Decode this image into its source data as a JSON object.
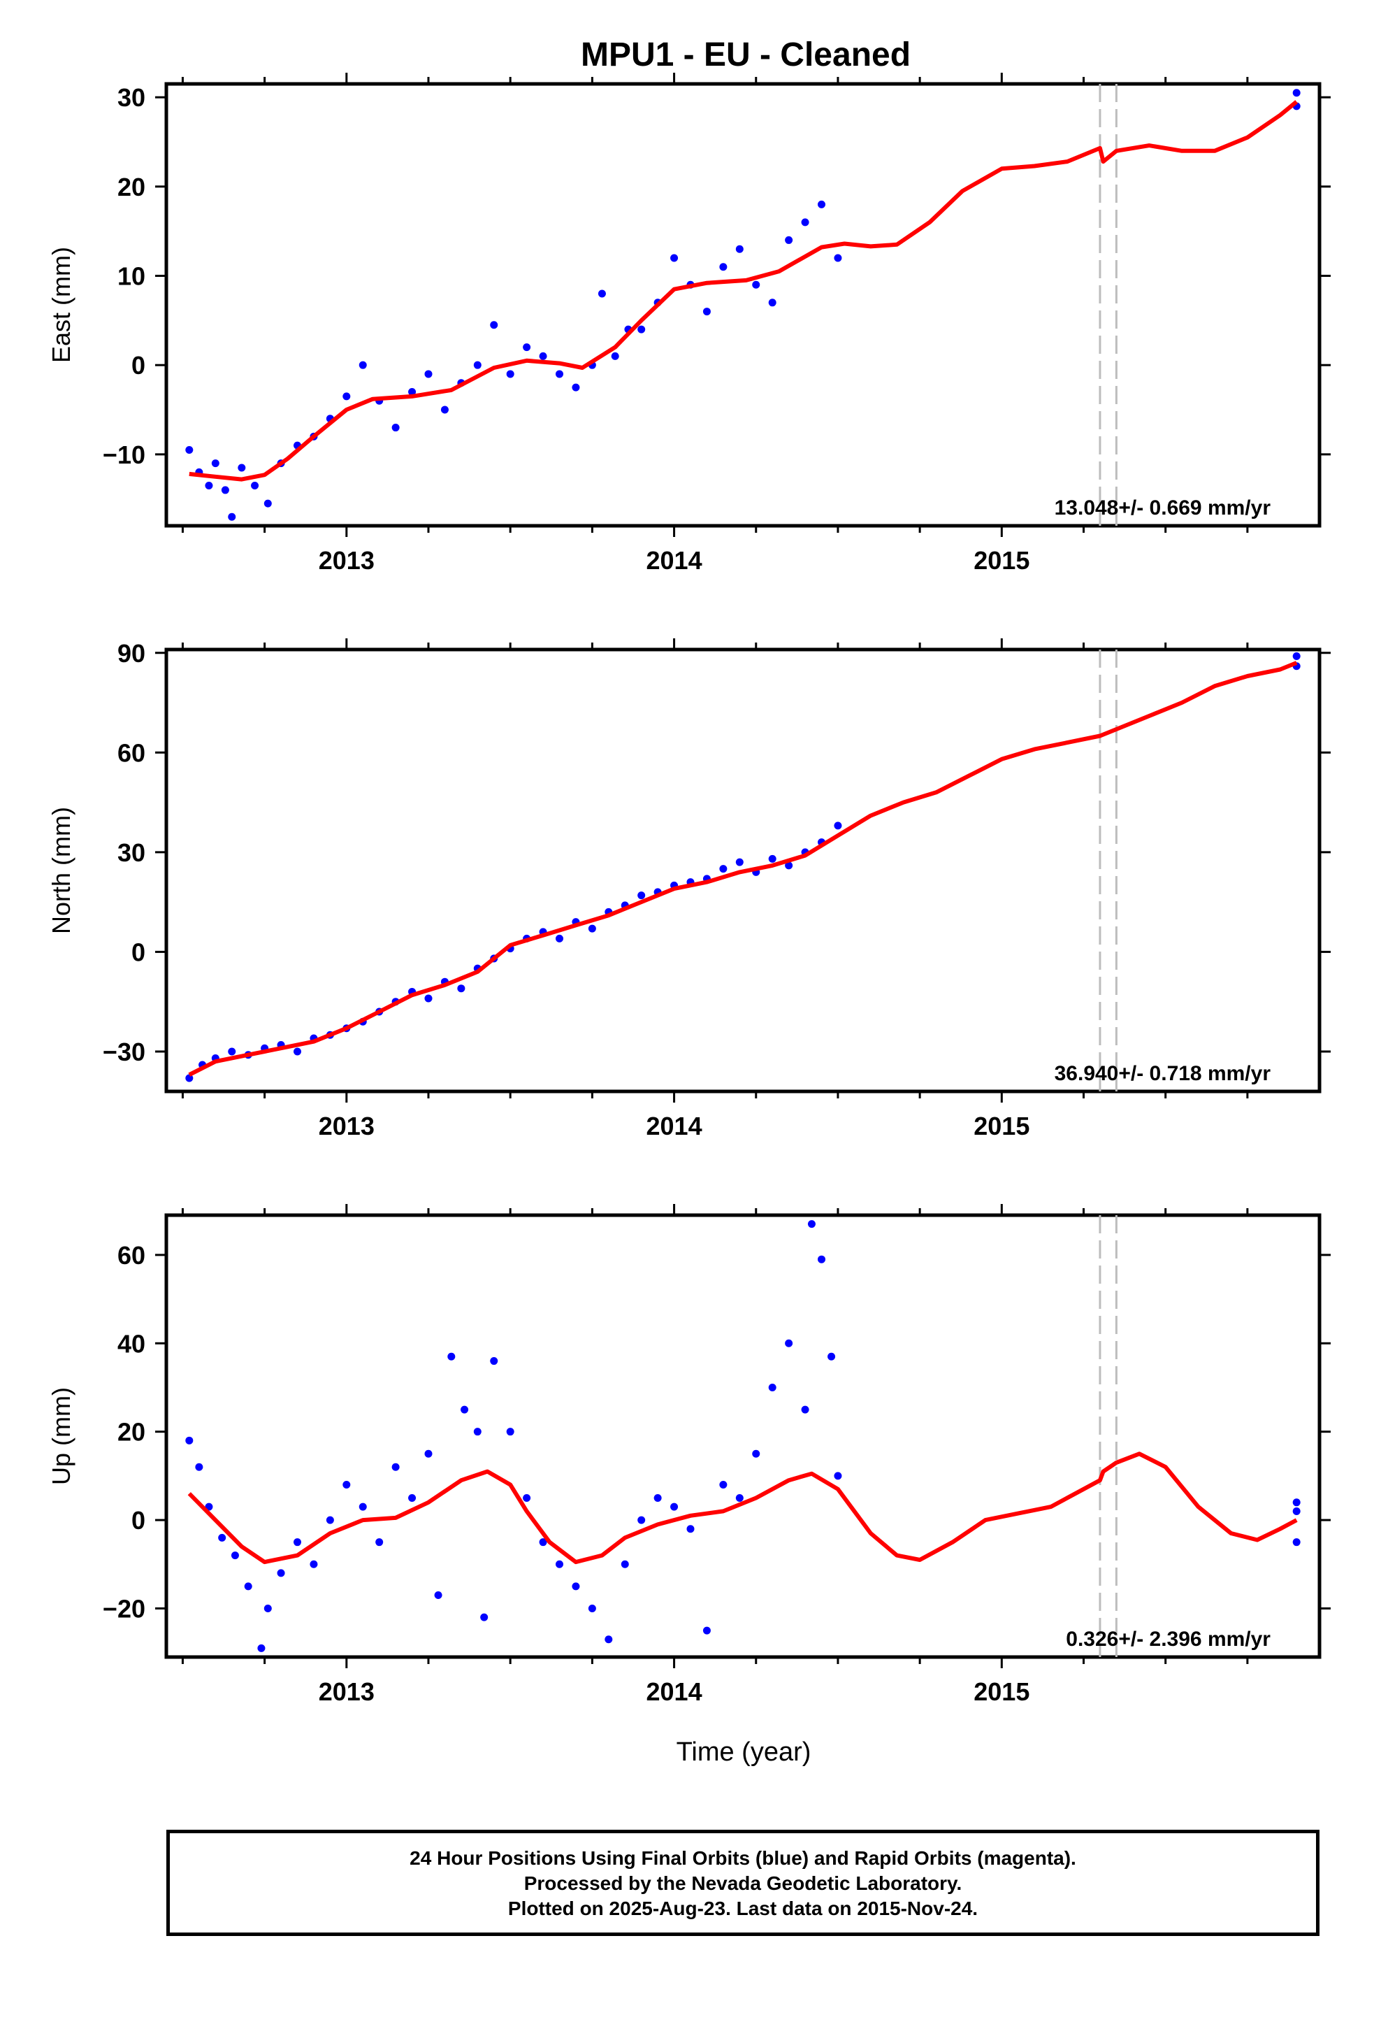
{
  "chart_title": "MPU1  - EU - Cleaned",
  "x_axis_label": "Time (year)",
  "chart_data": [
    {
      "type": "scatter",
      "title": "MPU1  - EU - Cleaned",
      "ylabel": "East (mm)",
      "xlabel": "",
      "xlim": [
        2012.45,
        2015.97
      ],
      "ylim": [
        -18,
        31.5
      ],
      "xticks": [
        2013,
        2014,
        2015
      ],
      "yticks": [
        -10,
        0,
        10,
        20,
        30
      ],
      "grid": false,
      "rate_label": "13.048+/- 0.669 mm/yr",
      "steps": [
        2015.3,
        2015.35
      ],
      "fit": [
        [
          2012.52,
          -12.2
        ],
        [
          2012.6,
          -12.5
        ],
        [
          2012.68,
          -12.8
        ],
        [
          2012.75,
          -12.3
        ],
        [
          2012.82,
          -10.5
        ],
        [
          2012.9,
          -8
        ],
        [
          2013.0,
          -5
        ],
        [
          2013.08,
          -3.8
        ],
        [
          2013.2,
          -3.5
        ],
        [
          2013.32,
          -2.8
        ],
        [
          2013.45,
          -0.3
        ],
        [
          2013.55,
          0.5
        ],
        [
          2013.65,
          0.2
        ],
        [
          2013.72,
          -0.3
        ],
        [
          2013.82,
          2
        ],
        [
          2013.9,
          5
        ],
        [
          2014.0,
          8.5
        ],
        [
          2014.1,
          9.2
        ],
        [
          2014.22,
          9.5
        ],
        [
          2014.32,
          10.5
        ],
        [
          2014.45,
          13.2
        ],
        [
          2014.52,
          13.6
        ],
        [
          2014.6,
          13.3
        ],
        [
          2014.68,
          13.5
        ],
        [
          2014.78,
          16
        ],
        [
          2014.88,
          19.5
        ],
        [
          2015.0,
          22
        ],
        [
          2015.1,
          22.3
        ],
        [
          2015.2,
          22.8
        ],
        [
          2015.3,
          24.3
        ],
        [
          2015.31,
          22.8
        ],
        [
          2015.35,
          24.0
        ],
        [
          2015.45,
          24.6
        ],
        [
          2015.55,
          24
        ],
        [
          2015.65,
          24
        ],
        [
          2015.75,
          25.5
        ],
        [
          2015.85,
          28
        ],
        [
          2015.9,
          29.5
        ]
      ],
      "points": {
        "final": [
          [
            2012.52,
            -9.5
          ],
          [
            2012.55,
            -12
          ],
          [
            2012.58,
            -13.5
          ],
          [
            2012.6,
            -11
          ],
          [
            2012.63,
            -14
          ],
          [
            2012.65,
            -17
          ],
          [
            2012.68,
            -11.5
          ],
          [
            2012.72,
            -13.5
          ],
          [
            2012.76,
            -15.5
          ],
          [
            2012.8,
            -11
          ],
          [
            2012.85,
            -9
          ],
          [
            2012.9,
            -8
          ],
          [
            2012.95,
            -6
          ],
          [
            2013.0,
            -3.5
          ],
          [
            2013.05,
            0
          ],
          [
            2013.1,
            -4
          ],
          [
            2013.15,
            -7
          ],
          [
            2013.2,
            -3
          ],
          [
            2013.25,
            -1
          ],
          [
            2013.3,
            -5
          ],
          [
            2013.35,
            -2
          ],
          [
            2013.4,
            0
          ],
          [
            2013.45,
            4.5
          ],
          [
            2013.5,
            -1
          ],
          [
            2013.55,
            2
          ],
          [
            2013.6,
            1
          ],
          [
            2013.65,
            -1
          ],
          [
            2013.7,
            -2.5
          ],
          [
            2013.75,
            0
          ],
          [
            2013.78,
            8
          ],
          [
            2013.82,
            1
          ],
          [
            2013.86,
            4
          ],
          [
            2013.9,
            4
          ],
          [
            2013.95,
            7
          ],
          [
            2014.0,
            12
          ],
          [
            2014.05,
            9
          ],
          [
            2014.1,
            6
          ],
          [
            2014.15,
            11
          ],
          [
            2014.2,
            13
          ],
          [
            2014.25,
            9
          ],
          [
            2014.3,
            7
          ],
          [
            2014.35,
            14
          ],
          [
            2014.4,
            16
          ],
          [
            2014.45,
            18
          ],
          [
            2014.5,
            12
          ]
        ],
        "rapid": [
          [
            2015.9,
            30.5
          ],
          [
            2015.9,
            29
          ]
        ]
      }
    },
    {
      "type": "scatter",
      "ylabel": "North (mm)",
      "xlabel": "",
      "xlim": [
        2012.45,
        2015.97
      ],
      "ylim": [
        -42,
        91
      ],
      "xticks": [
        2013,
        2014,
        2015
      ],
      "yticks": [
        -30,
        0,
        30,
        60,
        90
      ],
      "grid": false,
      "rate_label": "36.940+/- 0.718 mm/yr",
      "steps": [
        2015.3,
        2015.35
      ],
      "fit": [
        [
          2012.52,
          -37
        ],
        [
          2012.6,
          -33
        ],
        [
          2012.7,
          -31
        ],
        [
          2012.8,
          -29
        ],
        [
          2012.9,
          -27
        ],
        [
          2013.0,
          -23
        ],
        [
          2013.1,
          -18
        ],
        [
          2013.2,
          -13
        ],
        [
          2013.3,
          -10
        ],
        [
          2013.4,
          -6
        ],
        [
          2013.5,
          2
        ],
        [
          2013.6,
          5
        ],
        [
          2013.7,
          8
        ],
        [
          2013.8,
          11
        ],
        [
          2013.9,
          15
        ],
        [
          2014.0,
          19
        ],
        [
          2014.1,
          21
        ],
        [
          2014.2,
          24
        ],
        [
          2014.3,
          26
        ],
        [
          2014.4,
          29
        ],
        [
          2014.5,
          35
        ],
        [
          2014.6,
          41
        ],
        [
          2014.7,
          45
        ],
        [
          2014.8,
          48
        ],
        [
          2014.9,
          53
        ],
        [
          2015.0,
          58
        ],
        [
          2015.1,
          61
        ],
        [
          2015.2,
          63
        ],
        [
          2015.3,
          65
        ],
        [
          2015.35,
          67
        ],
        [
          2015.45,
          71
        ],
        [
          2015.55,
          75
        ],
        [
          2015.65,
          80
        ],
        [
          2015.75,
          83
        ],
        [
          2015.85,
          85
        ],
        [
          2015.9,
          87
        ]
      ],
      "points": {
        "final": [
          [
            2012.52,
            -38
          ],
          [
            2012.56,
            -34
          ],
          [
            2012.6,
            -32
          ],
          [
            2012.65,
            -30
          ],
          [
            2012.7,
            -31
          ],
          [
            2012.75,
            -29
          ],
          [
            2012.8,
            -28
          ],
          [
            2012.85,
            -30
          ],
          [
            2012.9,
            -26
          ],
          [
            2012.95,
            -25
          ],
          [
            2013.0,
            -23
          ],
          [
            2013.05,
            -21
          ],
          [
            2013.1,
            -18
          ],
          [
            2013.15,
            -15
          ],
          [
            2013.2,
            -12
          ],
          [
            2013.25,
            -14
          ],
          [
            2013.3,
            -9
          ],
          [
            2013.35,
            -11
          ],
          [
            2013.4,
            -5
          ],
          [
            2013.45,
            -2
          ],
          [
            2013.5,
            1
          ],
          [
            2013.55,
            4
          ],
          [
            2013.6,
            6
          ],
          [
            2013.65,
            4
          ],
          [
            2013.7,
            9
          ],
          [
            2013.75,
            7
          ],
          [
            2013.8,
            12
          ],
          [
            2013.85,
            14
          ],
          [
            2013.9,
            17
          ],
          [
            2013.95,
            18
          ],
          [
            2014.0,
            20
          ],
          [
            2014.05,
            21
          ],
          [
            2014.1,
            22
          ],
          [
            2014.15,
            25
          ],
          [
            2014.2,
            27
          ],
          [
            2014.25,
            24
          ],
          [
            2014.3,
            28
          ],
          [
            2014.35,
            26
          ],
          [
            2014.4,
            30
          ],
          [
            2014.45,
            33
          ],
          [
            2014.5,
            38
          ]
        ],
        "rapid": [
          [
            2015.9,
            89
          ],
          [
            2015.9,
            86
          ]
        ]
      }
    },
    {
      "type": "scatter",
      "ylabel": "Up (mm)",
      "xlabel": "Time (year)",
      "xlim": [
        2012.45,
        2015.97
      ],
      "ylim": [
        -31,
        69
      ],
      "xticks": [
        2013,
        2014,
        2015
      ],
      "yticks": [
        -20,
        0,
        20,
        40,
        60
      ],
      "grid": false,
      "rate_label": "0.326+/- 2.396 mm/yr",
      "steps": [
        2015.3,
        2015.35
      ],
      "fit": [
        [
          2012.52,
          6
        ],
        [
          2012.6,
          0
        ],
        [
          2012.68,
          -6
        ],
        [
          2012.75,
          -9.5
        ],
        [
          2012.85,
          -8
        ],
        [
          2012.95,
          -3
        ],
        [
          2013.05,
          0
        ],
        [
          2013.15,
          0.5
        ],
        [
          2013.25,
          4
        ],
        [
          2013.35,
          9
        ],
        [
          2013.43,
          11
        ],
        [
          2013.5,
          8
        ],
        [
          2013.55,
          2
        ],
        [
          2013.62,
          -5
        ],
        [
          2013.7,
          -9.5
        ],
        [
          2013.78,
          -8
        ],
        [
          2013.85,
          -4
        ],
        [
          2013.95,
          -1
        ],
        [
          2014.05,
          1
        ],
        [
          2014.15,
          2
        ],
        [
          2014.25,
          5
        ],
        [
          2014.35,
          9
        ],
        [
          2014.42,
          10.5
        ],
        [
          2014.5,
          7
        ],
        [
          2014.6,
          -3
        ],
        [
          2014.68,
          -8
        ],
        [
          2014.75,
          -9
        ],
        [
          2014.85,
          -5
        ],
        [
          2014.95,
          0
        ],
        [
          2015.05,
          1.5
        ],
        [
          2015.15,
          3
        ],
        [
          2015.25,
          7
        ],
        [
          2015.3,
          9
        ],
        [
          2015.31,
          11
        ],
        [
          2015.35,
          13
        ],
        [
          2015.42,
          15
        ],
        [
          2015.5,
          12
        ],
        [
          2015.6,
          3
        ],
        [
          2015.7,
          -3
        ],
        [
          2015.78,
          -4.5
        ],
        [
          2015.85,
          -2
        ],
        [
          2015.9,
          0
        ]
      ],
      "points": {
        "final": [
          [
            2012.52,
            18
          ],
          [
            2012.55,
            12
          ],
          [
            2012.58,
            3
          ],
          [
            2012.62,
            -4
          ],
          [
            2012.66,
            -8
          ],
          [
            2012.7,
            -15
          ],
          [
            2012.74,
            -29
          ],
          [
            2012.76,
            -20
          ],
          [
            2012.8,
            -12
          ],
          [
            2012.85,
            -5
          ],
          [
            2012.9,
            -10
          ],
          [
            2012.95,
            0
          ],
          [
            2013.0,
            8
          ],
          [
            2013.05,
            3
          ],
          [
            2013.1,
            -5
          ],
          [
            2013.15,
            12
          ],
          [
            2013.2,
            5
          ],
          [
            2013.25,
            15
          ],
          [
            2013.28,
            -17
          ],
          [
            2013.32,
            37
          ],
          [
            2013.36,
            25
          ],
          [
            2013.4,
            20
          ],
          [
            2013.42,
            -22
          ],
          [
            2013.45,
            36
          ],
          [
            2013.5,
            20
          ],
          [
            2013.55,
            5
          ],
          [
            2013.6,
            -5
          ],
          [
            2013.65,
            -10
          ],
          [
            2013.7,
            -15
          ],
          [
            2013.75,
            -20
          ],
          [
            2013.8,
            -27
          ],
          [
            2013.85,
            -10
          ],
          [
            2013.9,
            0
          ],
          [
            2013.95,
            5
          ],
          [
            2014.0,
            3
          ],
          [
            2014.05,
            -2
          ],
          [
            2014.1,
            -25
          ],
          [
            2014.15,
            8
          ],
          [
            2014.2,
            5
          ],
          [
            2014.25,
            15
          ],
          [
            2014.3,
            30
          ],
          [
            2014.35,
            40
          ],
          [
            2014.4,
            25
          ],
          [
            2014.42,
            67
          ],
          [
            2014.45,
            59
          ],
          [
            2014.48,
            37
          ],
          [
            2014.5,
            10
          ]
        ],
        "rapid": [
          [
            2015.9,
            4
          ],
          [
            2015.9,
            2
          ],
          [
            2015.9,
            -5
          ]
        ]
      }
    }
  ],
  "legend_lines": [
    "24 Hour Positions Using Final Orbits (blue) and Rapid Orbits (magenta).",
    "Processed by the Nevada Geodetic Laboratory.",
    "Plotted on 2025-Aug-23. Last data on 2015-Nov-24."
  ],
  "colors": {
    "points": "#0000ff",
    "fit": "#ff0000",
    "steps": "#bdbdbd",
    "frame": "#000000"
  }
}
